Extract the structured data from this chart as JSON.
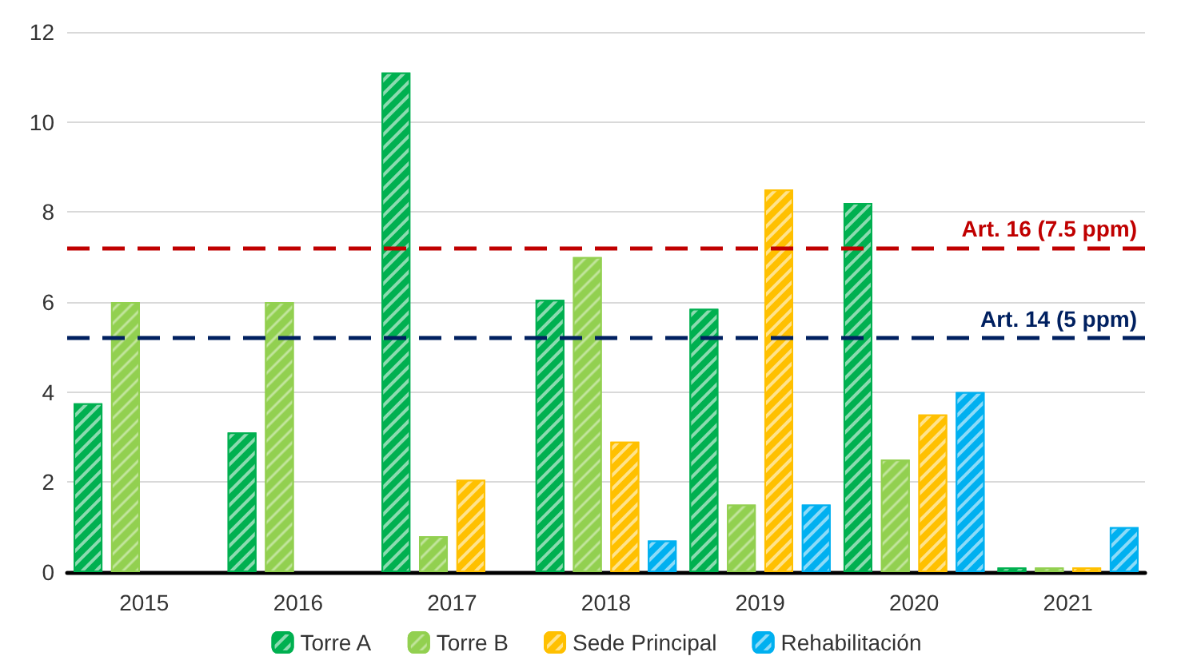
{
  "chart_data": {
    "type": "bar",
    "categories": [
      "2015",
      "2016",
      "2017",
      "2018",
      "2019",
      "2020",
      "2021"
    ],
    "series": [
      {
        "name": "Torre A",
        "color": "#00b050",
        "values": [
          3.75,
          3.1,
          11.1,
          6.05,
          5.85,
          8.2,
          0.1
        ]
      },
      {
        "name": "Torre B",
        "color": "#92d050",
        "values": [
          6.0,
          6.0,
          0.8,
          7.0,
          1.5,
          2.5,
          0.1
        ]
      },
      {
        "name": "Sede Principal",
        "color": "#ffc000",
        "values": [
          null,
          null,
          2.05,
          2.9,
          8.5,
          3.5,
          0.1
        ]
      },
      {
        "name": "Rehabilitación",
        "color": "#00b0f0",
        "values": [
          null,
          null,
          null,
          0.7,
          1.5,
          4.0,
          1.0
        ]
      }
    ],
    "ylim": [
      0,
      12
    ],
    "yticks": [
      0,
      2,
      4,
      6,
      8,
      10,
      12
    ],
    "grid": "y",
    "legend": "bottom",
    "ref_lines": [
      {
        "axis": "y",
        "value": 7.2,
        "label": "Art. 16 (7.5 ppm)",
        "color": "#c00000",
        "line_style": "dashed"
      },
      {
        "axis": "y",
        "value": 5.2,
        "label": "Art. 14 (5 ppm)",
        "color": "#002060",
        "line_style": "dashed"
      }
    ]
  }
}
